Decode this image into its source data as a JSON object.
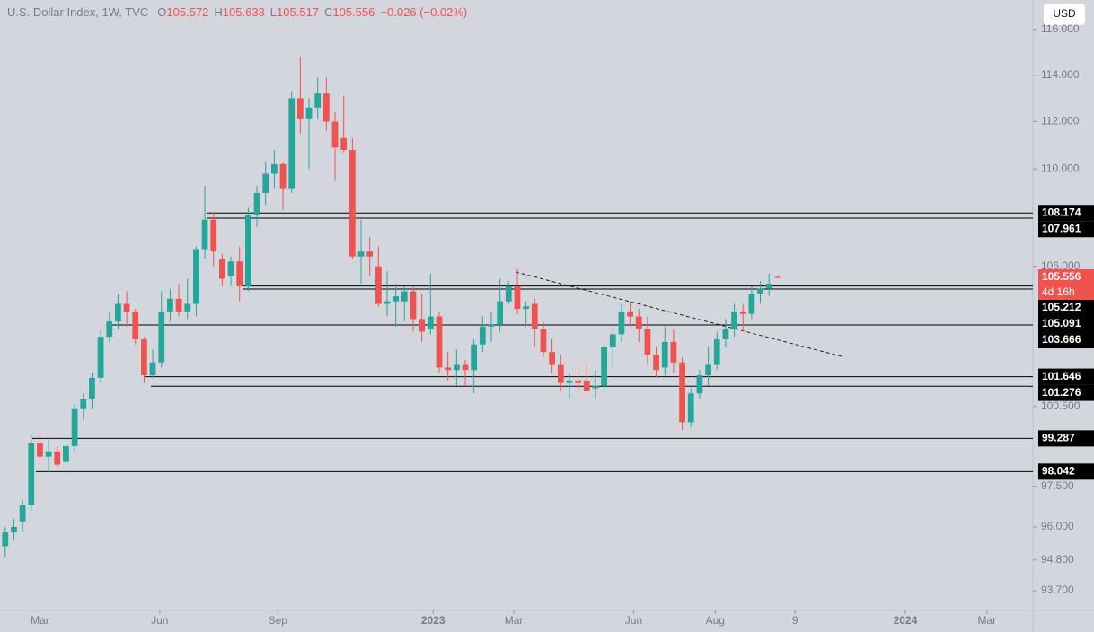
{
  "chart_data": {
    "type": "candlestick",
    "title": "U.S. Dollar Index, 1W, TVC",
    "ohlc_labels": [
      "O",
      "H",
      "L",
      "C"
    ],
    "change": "−0.026 (−0.02%)",
    "countdown": "4d 16h",
    "currency": "USD",
    "log_scale": true,
    "up_color": "#26a69a",
    "down_color": "#ef5350",
    "level_color": "#000000",
    "open": [
      95.3,
      95.8,
      96.2,
      96.8,
      99.1,
      98.6,
      98.8,
      98.4,
      99.0,
      100.4,
      100.8,
      101.6,
      103.2,
      103.8,
      104.5,
      104.2,
      103.1,
      101.7,
      102.2,
      104.2,
      104.7,
      104.2,
      104.5,
      106.7,
      107.9,
      106.3,
      105.6,
      106.2,
      105.2,
      108.1,
      109.0,
      109.8,
      110.2,
      109.2,
      113.0,
      112.1,
      112.6,
      113.2,
      112.0,
      111.3,
      110.8,
      106.4,
      106.6,
      106.0,
      104.5,
      104.6,
      104.6,
      105.0,
      103.9,
      103.5,
      104.0,
      102.0,
      101.9,
      102.1,
      101.9,
      102.9,
      103.6,
      103.7,
      104.6,
      105.2,
      104.3,
      104.5,
      103.5,
      102.6,
      102.1,
      101.4,
      101.5,
      101.5,
      101.2,
      101.3,
      102.8,
      103.3,
      104.2,
      104.0,
      103.5,
      102.5,
      102.0,
      103.0,
      102.2,
      99.9,
      101.0,
      101.7,
      102.1,
      103.1,
      103.5,
      104.2,
      104.1,
      104.9,
      105.1,
      105.572
    ],
    "high": [
      96.0,
      96.3,
      97.0,
      99.4,
      99.4,
      99.3,
      99.0,
      99.3,
      100.6,
      101.0,
      101.8,
      103.5,
      104.2,
      104.9,
      105.0,
      104.3,
      103.2,
      102.7,
      105.0,
      105.1,
      105.3,
      105.5,
      106.8,
      109.3,
      108.2,
      106.5,
      106.4,
      106.8,
      108.4,
      109.3,
      110.3,
      110.8,
      110.3,
      113.3,
      114.8,
      113.0,
      113.9,
      113.9,
      112.4,
      113.1,
      111.3,
      107.9,
      107.2,
      106.8,
      105.8,
      105.3,
      105.2,
      105.2,
      104.9,
      105.7,
      104.2,
      102.6,
      102.7,
      102.3,
      103.1,
      104.0,
      104.2,
      105.5,
      105.4,
      105.9,
      104.6,
      104.7,
      103.8,
      103.1,
      102.5,
      101.8,
      102.0,
      102.2,
      101.9,
      102.9,
      103.6,
      104.5,
      104.6,
      104.3,
      104.0,
      102.8,
      103.6,
      103.5,
      102.4,
      101.2,
      101.9,
      102.8,
      103.4,
      103.9,
      104.5,
      104.5,
      105.2,
      105.4,
      105.7,
      105.633
    ],
    "low": [
      94.9,
      95.5,
      95.8,
      96.6,
      98.3,
      98.0,
      98.2,
      97.9,
      98.8,
      100.0,
      100.4,
      101.4,
      103.0,
      103.5,
      103.6,
      102.9,
      101.4,
      101.6,
      102.0,
      103.8,
      104.0,
      103.9,
      104.0,
      106.3,
      106.0,
      105.2,
      105.2,
      104.6,
      105.0,
      107.6,
      108.5,
      109.2,
      108.3,
      109.0,
      111.5,
      110.0,
      112.1,
      111.6,
      109.5,
      110.7,
      106.3,
      105.3,
      105.6,
      104.4,
      104.0,
      103.6,
      103.8,
      103.4,
      103.0,
      103.3,
      101.8,
      101.5,
      101.3,
      101.3,
      101.0,
      102.6,
      103.0,
      103.4,
      104.5,
      104.1,
      103.6,
      102.8,
      102.4,
      101.8,
      101.1,
      100.8,
      101.2,
      101.0,
      100.8,
      101.0,
      102.0,
      103.0,
      103.6,
      103.0,
      102.1,
      101.6,
      101.7,
      101.8,
      99.6,
      99.7,
      100.8,
      101.3,
      101.9,
      102.8,
      103.2,
      103.4,
      103.9,
      104.5,
      104.8,
      105.517
    ],
    "close": [
      95.8,
      96.0,
      96.8,
      99.1,
      98.6,
      98.8,
      98.3,
      99.0,
      100.4,
      100.8,
      101.6,
      103.2,
      103.8,
      104.5,
      104.2,
      103.1,
      101.7,
      102.2,
      104.2,
      104.7,
      104.2,
      104.5,
      106.7,
      107.9,
      106.6,
      105.5,
      106.2,
      105.2,
      108.1,
      109.0,
      109.8,
      110.2,
      109.2,
      113.0,
      112.1,
      112.6,
      113.2,
      112.0,
      110.9,
      110.8,
      106.4,
      106.6,
      106.4,
      104.5,
      104.6,
      104.8,
      105.0,
      103.9,
      103.4,
      104.0,
      102.0,
      101.9,
      102.1,
      101.9,
      102.9,
      103.6,
      103.7,
      104.6,
      105.2,
      104.3,
      104.4,
      103.5,
      102.6,
      102.1,
      101.4,
      101.5,
      101.4,
      101.1,
      101.3,
      102.8,
      103.3,
      104.2,
      104.0,
      103.5,
      102.5,
      101.9,
      103.0,
      102.2,
      99.9,
      101.0,
      101.7,
      102.1,
      103.1,
      103.5,
      104.2,
      104.1,
      104.9,
      105.1,
      105.3,
      105.556
    ],
    "xlim": [
      -0.6,
      118.4
    ],
    "xticks": [
      {
        "value": 4,
        "label": "Mar"
      },
      {
        "value": 17.8,
        "label": "Jun"
      },
      {
        "value": 31.4,
        "label": "Sep"
      },
      {
        "value": 49.3,
        "label": "2023"
      },
      {
        "value": 58.6,
        "label": "Mar"
      },
      {
        "value": 72.4,
        "label": "Jun"
      },
      {
        "value": 81.8,
        "label": "Aug"
      },
      {
        "value": 91,
        "label": "9"
      },
      {
        "value": 103.7,
        "label": "2024"
      },
      {
        "value": 113.1,
        "label": "Mar"
      }
    ],
    "ylim": [
      93.0,
      117.3
    ],
    "yticks": [
      {
        "value": 116,
        "label": "116.000"
      },
      {
        "value": 114,
        "label": "114.000"
      },
      {
        "value": 112,
        "label": "112.000"
      },
      {
        "value": 110,
        "label": "110.000"
      },
      {
        "value": 106,
        "label": "106.000"
      },
      {
        "value": 100.5,
        "label": "100.500"
      },
      {
        "value": 97.5,
        "label": "97.500"
      },
      {
        "value": 96,
        "label": "96.000"
      },
      {
        "value": 94.8,
        "label": "94.800"
      },
      {
        "value": 93.7,
        "label": "93.700"
      }
    ],
    "levels": [
      108.174,
      107.961,
      105.212,
      105.091,
      103.666,
      101.646,
      101.276,
      99.287,
      98.042
    ]
  }
}
